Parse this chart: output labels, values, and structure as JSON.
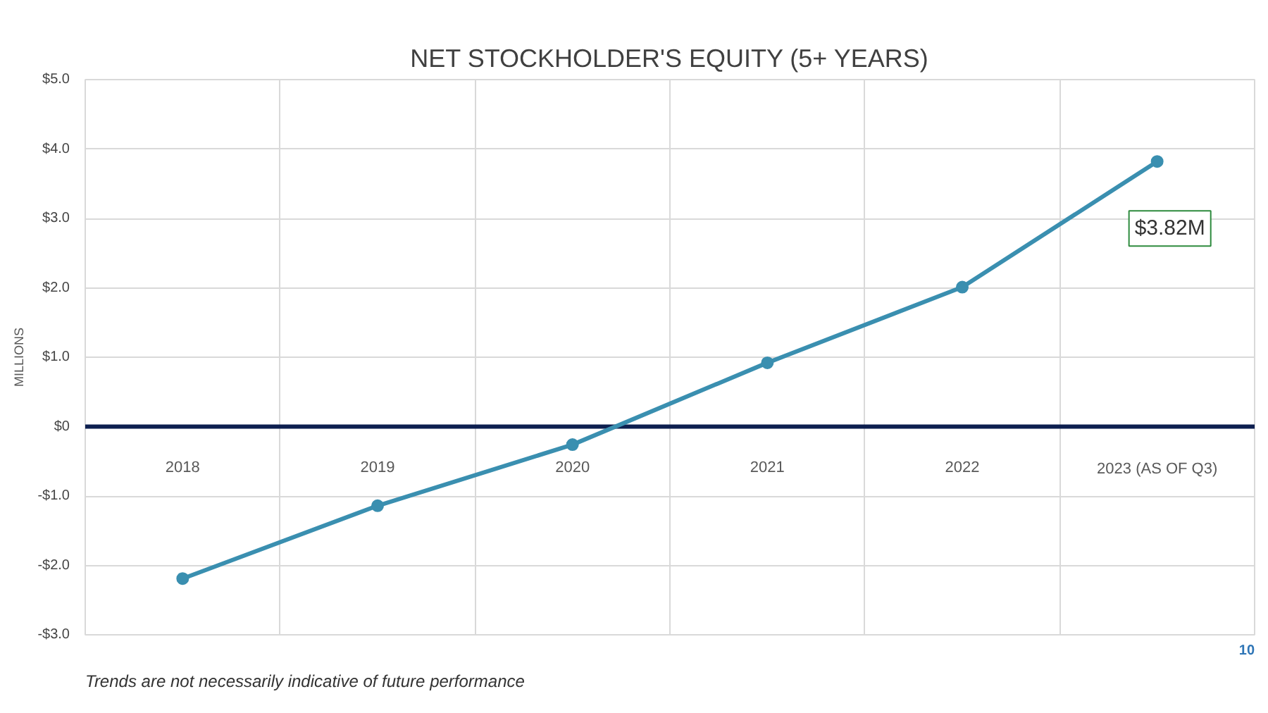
{
  "chart_data": {
    "type": "line",
    "title": "NET STOCKHOLDER'S EQUITY (5+ YEARS)",
    "ylabel": "MILLIONS",
    "categories": [
      "2018",
      "2019",
      "2020",
      "2021",
      "2022",
      "2023 (AS OF Q3)"
    ],
    "series": [
      {
        "color": "#3a8fb0",
        "values": [
          -2.19,
          -1.14,
          -0.26,
          0.92,
          2.01,
          3.82
        ]
      }
    ],
    "ylim": [
      -3,
      5
    ],
    "yticks": [
      {
        "value": -3,
        "label": "-$3.0"
      },
      {
        "value": -2,
        "label": "-$2.0"
      },
      {
        "value": -1,
        "label": "-$1.0"
      },
      {
        "value": 0,
        "label": "$0"
      },
      {
        "value": 1,
        "label": "$1.0"
      },
      {
        "value": 2,
        "label": "$2.0"
      },
      {
        "value": 3,
        "label": "$3.0"
      },
      {
        "value": 4,
        "label": "$4.0"
      },
      {
        "value": 5,
        "label": "$5.0"
      }
    ],
    "grid": true,
    "marker": "circle",
    "line_style": "solid",
    "annotations": [
      {
        "text": "$3.82M",
        "x": "2023 (AS OF Q3)",
        "y": 3.82
      },
      "Trends are not necessarily indicative of future performance",
      "10"
    ]
  }
}
